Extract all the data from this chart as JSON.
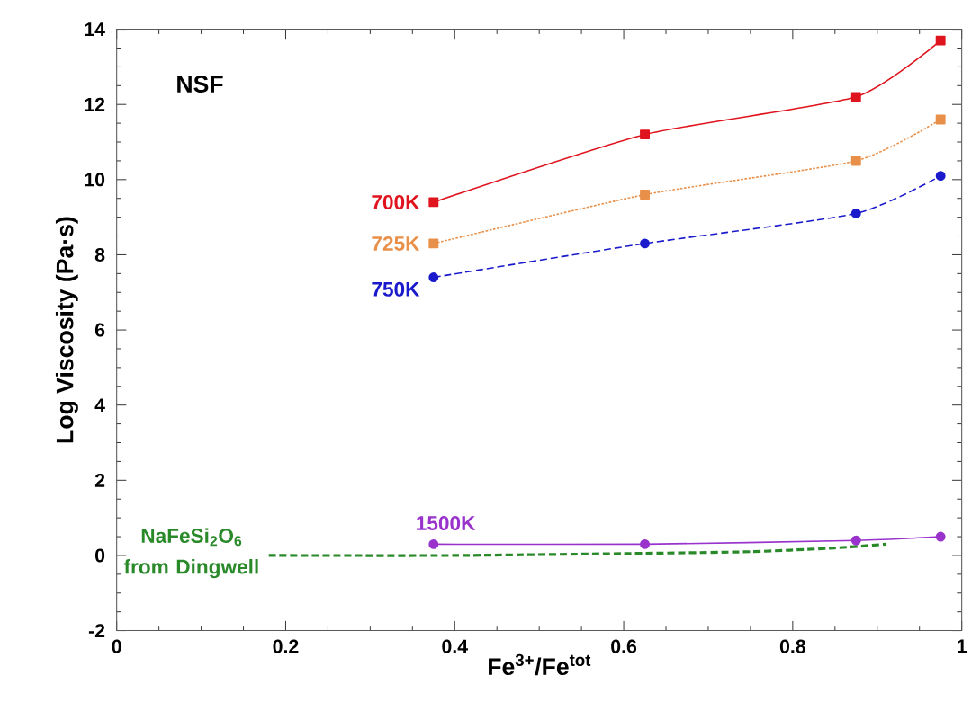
{
  "chart_data": {
    "type": "line",
    "xlabel": "Fe$^{3+}$/Fe$^{tot}$",
    "ylabel": "Log Viscosity (Pa·s)",
    "xlim": [
      0,
      1
    ],
    "ylim": [
      -2,
      14
    ],
    "xticks": [
      0,
      0.2,
      0.4,
      0.6,
      0.8,
      1
    ],
    "yticks": [
      -2,
      0,
      2,
      4,
      6,
      8,
      10,
      12,
      14
    ],
    "grid": false,
    "annotations": [
      "NSF"
    ],
    "series": [
      {
        "name": "700K",
        "color": "#e0141e",
        "marker": "square",
        "line_style": "solid",
        "x": [
          0.375,
          0.625,
          0.875,
          0.975
        ],
        "values": [
          9.4,
          11.2,
          12.2,
          13.7
        ]
      },
      {
        "name": "725K",
        "color": "#e8904a",
        "marker": "square",
        "line_style": "dotted",
        "x": [
          0.375,
          0.625,
          0.875,
          0.975
        ],
        "values": [
          8.3,
          9.6,
          10.5,
          11.6
        ]
      },
      {
        "name": "750K",
        "color": "#1a1acc",
        "marker": "circle",
        "line_style": "dashed",
        "x": [
          0.375,
          0.625,
          0.875,
          0.975
        ],
        "values": [
          7.4,
          8.3,
          9.1,
          10.1
        ]
      },
      {
        "name": "1500K",
        "color": "#9933cc",
        "marker": "circle",
        "line_style": "solid",
        "x": [
          0.375,
          0.625,
          0.875,
          0.975
        ],
        "values": [
          0.3,
          0.3,
          0.4,
          0.5
        ]
      },
      {
        "name": "NaFeSi$_{2}$O$_{6}$ from Dingwell",
        "color": "#2a8a2a",
        "marker": "none",
        "line_style": "dashed",
        "x": [
          0.18,
          0.4,
          0.6,
          0.75,
          0.85,
          0.91
        ],
        "values": [
          0,
          0,
          0.05,
          0.1,
          0.2,
          0.3
        ]
      }
    ]
  }
}
